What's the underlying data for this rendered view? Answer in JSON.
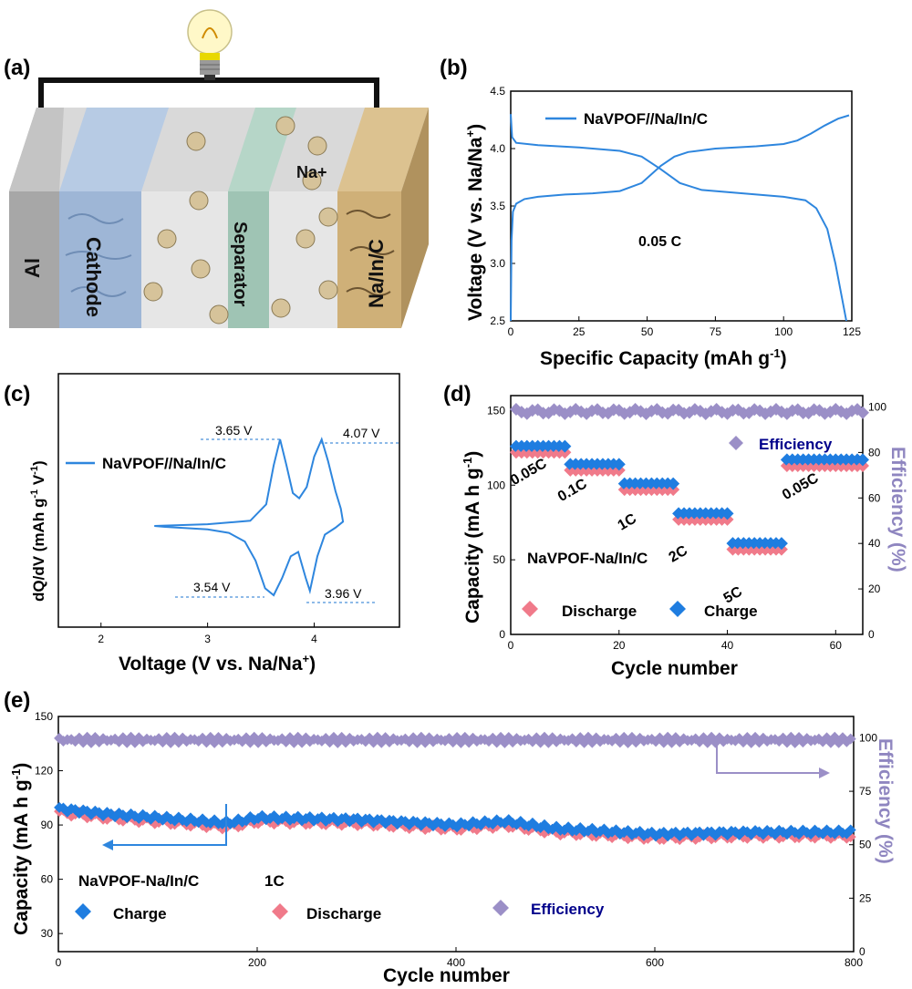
{
  "panels": {
    "a": "(a)",
    "b": "(b)",
    "c": "(c)",
    "d": "(d)",
    "e": "(e)"
  },
  "schematic": {
    "layers": [
      "Al",
      "Cathode",
      "Separator",
      "Na/In/C"
    ],
    "ion": "Na+"
  },
  "colors": {
    "line_blue": "#2e86de",
    "charge_blue": "#1f7de0",
    "discharge_pink": "#f07a8a",
    "efficiency_purple": "#9b8fc7",
    "efficiency_axis": "#8f86c0",
    "efficiency_label": "#00008b"
  },
  "chart_data": [
    {
      "id": "b",
      "type": "line",
      "xlabel": "Specific Capacity (mAh g",
      "xlabel_sup": "-1",
      "xlabel_end": ")",
      "ylabel": "Voltage (V vs. Na/Na",
      "ylabel_sup": "+",
      "ylabel_end": ")",
      "xlim": [
        0,
        125
      ],
      "ylim": [
        2.5,
        4.5
      ],
      "xticks": [
        "0",
        "25",
        "50",
        "75",
        "100",
        "125"
      ],
      "yticks": [
        "2.5",
        "3.0",
        "3.5",
        "4.0",
        "4.5"
      ],
      "legend": "NaVPOF//Na/In/C",
      "annotation": "0.05 C",
      "series": [
        {
          "name": "NaVPOF//Na/In/C",
          "points": [
            [
              0,
              2.5
            ],
            [
              0.3,
              3.2
            ],
            [
              0.8,
              3.45
            ],
            [
              2,
              3.52
            ],
            [
              5,
              3.56
            ],
            [
              10,
              3.58
            ],
            [
              20,
              3.6
            ],
            [
              30,
              3.61
            ],
            [
              40,
              3.63
            ],
            [
              48,
              3.7
            ],
            [
              55,
              3.85
            ],
            [
              60,
              3.93
            ],
            [
              65,
              3.97
            ],
            [
              75,
              4.0
            ],
            [
              90,
              4.02
            ],
            [
              100,
              4.04
            ],
            [
              105,
              4.07
            ],
            [
              110,
              4.13
            ],
            [
              115,
              4.2
            ],
            [
              120,
              4.26
            ],
            [
              124,
              4.29
            ]
          ]
        },
        {
          "name": "NaVPOF//Na/In/C",
          "points": [
            [
              0,
              4.3
            ],
            [
              0.5,
              4.1
            ],
            [
              2,
              4.05
            ],
            [
              10,
              4.03
            ],
            [
              25,
              4.01
            ],
            [
              40,
              3.98
            ],
            [
              48,
              3.93
            ],
            [
              55,
              3.82
            ],
            [
              62,
              3.7
            ],
            [
              70,
              3.64
            ],
            [
              85,
              3.61
            ],
            [
              100,
              3.58
            ],
            [
              108,
              3.55
            ],
            [
              112,
              3.48
            ],
            [
              116,
              3.3
            ],
            [
              119,
              3.0
            ],
            [
              121,
              2.75
            ],
            [
              123,
              2.5
            ]
          ]
        }
      ]
    },
    {
      "id": "c",
      "type": "line",
      "xlabel": "Voltage (V vs. Na/Na",
      "xlabel_sup": "+",
      "xlabel_end": ")",
      "ylabel": "dQ/dV (mAh g",
      "ylabel_sup1": "-1",
      "ylabel_mid": " V",
      "ylabel_sup2": "-1",
      "ylabel_end": ")",
      "xlim": [
        1.6,
        4.8
      ],
      "xticks": [
        "2",
        "3",
        "4"
      ],
      "legend": "NaVPOF//Na/In/C",
      "peaks": {
        "ox1": "3.65 V",
        "ox2": "4.07 V",
        "red1": "3.54 V",
        "red2": "3.96 V"
      },
      "series": [
        {
          "name": "NaVPOF//Na/In/C",
          "points": [
            [
              2.5,
              0.0
            ],
            [
              3.0,
              0.02
            ],
            [
              3.4,
              0.06
            ],
            [
              3.55,
              0.25
            ],
            [
              3.62,
              0.7
            ],
            [
              3.68,
              1.0
            ],
            [
              3.74,
              0.7
            ],
            [
              3.8,
              0.38
            ],
            [
              3.86,
              0.32
            ],
            [
              3.93,
              0.45
            ],
            [
              4.0,
              0.8
            ],
            [
              4.07,
              1.0
            ],
            [
              4.13,
              0.75
            ],
            [
              4.2,
              0.4
            ],
            [
              4.25,
              0.2
            ],
            [
              4.27,
              0.05
            ],
            [
              4.2,
              -0.02
            ],
            [
              4.1,
              -0.1
            ],
            [
              4.03,
              -0.35
            ],
            [
              3.96,
              -0.75
            ],
            [
              3.92,
              -0.6
            ],
            [
              3.85,
              -0.3
            ],
            [
              3.78,
              -0.35
            ],
            [
              3.7,
              -0.6
            ],
            [
              3.62,
              -0.8
            ],
            [
              3.54,
              -0.72
            ],
            [
              3.45,
              -0.4
            ],
            [
              3.35,
              -0.18
            ],
            [
              3.2,
              -0.08
            ],
            [
              3.0,
              -0.04
            ],
            [
              2.6,
              -0.01
            ],
            [
              2.5,
              0.0
            ]
          ]
        }
      ]
    },
    {
      "id": "d",
      "type": "scatter",
      "xlabel": "Cycle number",
      "ylabel": "Capacity (mA h g",
      "ylabel_sup": "-1",
      "ylabel_end": ")",
      "y2label": "Efficiency (%)",
      "xlim": [
        0,
        65
      ],
      "ylim": [
        0,
        160
      ],
      "y2lim": [
        0,
        105
      ],
      "xticks": [
        "0",
        "20",
        "40",
        "60"
      ],
      "yticks": [
        "0",
        "50",
        "100",
        "150"
      ],
      "y2ticks": [
        "0",
        "20",
        "40",
        "60",
        "80",
        "100"
      ],
      "legend": [
        "Discharge",
        "Charge",
        "Efficiency"
      ],
      "sample": "NaVPOF-Na/In/C",
      "rate_labels": [
        "0.05C",
        "0.1C",
        "1C",
        "2C",
        "5C",
        "0.05C"
      ],
      "segments": [
        {
          "cycles": [
            1,
            10
          ],
          "charge": 126,
          "discharge": 122
        },
        {
          "cycles": [
            11,
            20
          ],
          "charge": 114,
          "discharge": 110
        },
        {
          "cycles": [
            21,
            30
          ],
          "charge": 101,
          "discharge": 97
        },
        {
          "cycles": [
            31,
            40
          ],
          "charge": 81,
          "discharge": 77
        },
        {
          "cycles": [
            41,
            50
          ],
          "charge": 61,
          "discharge": 57
        },
        {
          "cycles": [
            51,
            65
          ],
          "charge": 117,
          "discharge": 113
        }
      ],
      "efficiency": 98
    },
    {
      "id": "e",
      "type": "scatter",
      "xlabel": "Cycle number",
      "ylabel": "Capacity (mA h g",
      "ylabel_sup": "-1",
      "ylabel_end": ")",
      "y2label": "Efficiency (%)",
      "xlim": [
        0,
        800
      ],
      "ylim": [
        20,
        150
      ],
      "y2lim": [
        0,
        110
      ],
      "xticks": [
        "0",
        "200",
        "400",
        "600",
        "800"
      ],
      "yticks": [
        "30",
        "60",
        "90",
        "120",
        "150"
      ],
      "y2ticks": [
        "0",
        "25",
        "50",
        "75",
        "100"
      ],
      "legend": [
        "Charge",
        "Discharge",
        "Efficiency"
      ],
      "sample": "NaVPOF-Na/In/C",
      "rate": "1C",
      "charge_trend": [
        [
          1,
          99
        ],
        [
          50,
          96
        ],
        [
          100,
          94
        ],
        [
          170,
          91
        ],
        [
          200,
          94
        ],
        [
          300,
          93
        ],
        [
          400,
          90
        ],
        [
          450,
          92
        ],
        [
          500,
          88
        ],
        [
          600,
          85
        ],
        [
          700,
          86
        ],
        [
          800,
          86
        ]
      ],
      "discharge_offset": -2,
      "efficiency": 99
    }
  ]
}
